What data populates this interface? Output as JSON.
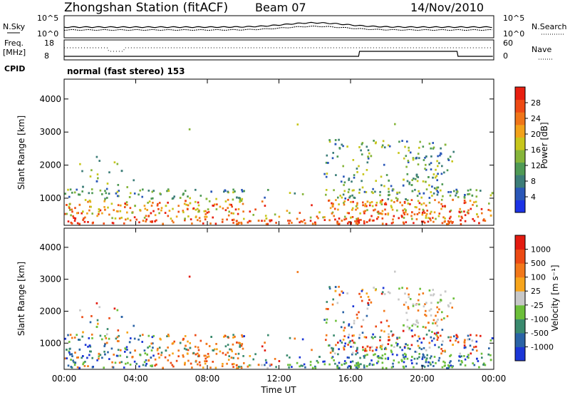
{
  "header": {
    "station": "Zhongshan Station (fitACF)",
    "beam": "Beam 07",
    "date": "14/Nov/2010"
  },
  "top_panels": {
    "nsky_label": "N.Sky",
    "nsky_ticks": [
      "10^5",
      "10^0"
    ],
    "nsearch_label": "N.Search",
    "nsearch_ticks": [
      "10^5",
      "10^0"
    ],
    "freq_label": "Freq.",
    "freq_unit": "[MHz]",
    "freq_ticks": [
      "18",
      "8"
    ],
    "nave_label": "Nave",
    "nave_ticks": [
      "60",
      "0"
    ],
    "cpid_label": "CPID",
    "cpid_text": "normal (fast stereo) 153"
  },
  "chart_data": [
    {
      "type": "heatmap",
      "name": "power-panel",
      "xlabel": "",
      "ylabel": "Slant Range [km]",
      "x_ticks": [
        "00:00",
        "04:00",
        "08:00",
        "12:00",
        "16:00",
        "20:00",
        "00:00"
      ],
      "x_range_hours": [
        0,
        24
      ],
      "y_ticks": [
        "1000",
        "2000",
        "3000",
        "4000"
      ],
      "ylim": [
        180,
        4600
      ],
      "colorbar": {
        "label": "Power [dB]",
        "ticks": [
          "4",
          "8",
          "12",
          "16",
          "20",
          "24",
          "28"
        ],
        "range": [
          0,
          30
        ],
        "colors": [
          "#1c33e6",
          "#2a57b8",
          "#3c7d78",
          "#4f9a55",
          "#86b53a",
          "#c7c61c",
          "#f2a21a",
          "#f07518",
          "#ee4a14",
          "#e81f10"
        ]
      }
    },
    {
      "type": "heatmap",
      "name": "velocity-panel",
      "xlabel": "Time UT",
      "ylabel": "Slant Range [km]",
      "x_ticks": [
        "00:00",
        "04:00",
        "08:00",
        "12:00",
        "16:00",
        "20:00",
        "00:00"
      ],
      "x_range_hours": [
        0,
        24
      ],
      "y_ticks": [
        "1000",
        "2000",
        "3000",
        "4000"
      ],
      "ylim": [
        180,
        4600
      ],
      "colorbar": {
        "label": "Velocity [m s⁻¹]",
        "ticks": [
          "1000",
          "500",
          "100",
          "25",
          "-25",
          "-100",
          "-500",
          "-1000"
        ],
        "colors": [
          "#1b36d6",
          "#2a63a6",
          "#3a8a6e",
          "#6cbf3a",
          "#c8c8c8",
          "#f7a51c",
          "#f2781a",
          "#ec4a14",
          "#e31b10"
        ]
      }
    }
  ]
}
